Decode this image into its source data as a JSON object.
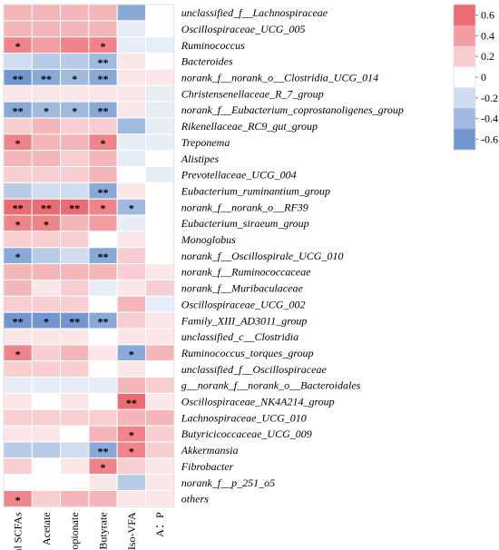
{
  "chart_data": {
    "type": "heatmap",
    "columns": [
      "Total SCFAs",
      "Acetate",
      "Propionate",
      "Butyrate",
      "Iso-VFA",
      "A：P"
    ],
    "rows": [
      "unclassified_f__Lachnospiraceae",
      "Oscillospiraceae_UCG_005",
      "Ruminococcus",
      "Bacteroides",
      "norank_f__norank_o__Clostridia_UCG_014",
      "Christensenellaceae_R_7_group",
      "norank_f__Eubacterium_coprostanoligenes_group",
      "Rikenellaceae_RC9_gut_group",
      "Treponema",
      "Alistipes",
      "Prevotellaceae_UCG_004",
      "Eubacterium_ruminantium_group",
      "norank_f__norank_o__RF39",
      "Eubacterium_siraeum_group",
      "Monoglobus",
      "norank_f__Oscillospirale_UCG_010",
      "norank_f__Ruminococcaceae",
      "norank_f__Muribaculaceae",
      "Oscillospiraceae_UCG_002",
      "Family_XIII_AD3011_group",
      "unclassified_c__Clostridia",
      "Ruminococcus_torques_group",
      "unclassified_f__Oscillospiraceae",
      "g__norank_f__norank_o__Bacteroidales",
      "Oscillospiraceae_NK4A214_group",
      "Lachnospiraceae_UCG_010",
      "Butyricicoccaceae_UCG_009",
      "Akkermansia",
      "Fibrobacter",
      "norank_f__p_251_o5",
      "others"
    ],
    "values": [
      [
        0.3,
        0.3,
        0.3,
        0.3,
        -0.5,
        0.0
      ],
      [
        0.3,
        0.3,
        0.3,
        0.3,
        -0.1,
        0.0
      ],
      [
        0.5,
        0.4,
        0.5,
        0.5,
        -0.1,
        -0.1
      ],
      [
        -0.2,
        -0.3,
        -0.3,
        -0.4,
        0.1,
        0.0
      ],
      [
        -0.6,
        -0.5,
        -0.4,
        -0.5,
        0.1,
        0.1
      ],
      [
        0.1,
        0.1,
        0.1,
        0.1,
        0.1,
        -0.1
      ],
      [
        -0.5,
        -0.4,
        -0.4,
        -0.5,
        0.1,
        -0.1
      ],
      [
        0.2,
        0.3,
        0.2,
        0.2,
        -0.4,
        -0.1
      ],
      [
        0.5,
        0.3,
        0.3,
        0.5,
        -0.1,
        -0.1
      ],
      [
        0.3,
        0.3,
        0.2,
        0.3,
        -0.1,
        0.0
      ],
      [
        0.2,
        0.2,
        0.2,
        0.3,
        0.0,
        -0.1
      ],
      [
        -0.3,
        -0.2,
        -0.2,
        -0.5,
        0.1,
        0.0
      ],
      [
        0.6,
        0.6,
        0.6,
        0.5,
        -0.4,
        0.0
      ],
      [
        0.5,
        0.5,
        0.3,
        0.4,
        -0.1,
        0.0
      ],
      [
        0.2,
        0.2,
        0.2,
        0.0,
        0.1,
        0.0
      ],
      [
        -0.5,
        -0.3,
        -0.2,
        -0.5,
        0.2,
        0.0
      ],
      [
        0.3,
        0.3,
        0.3,
        0.3,
        0.2,
        0.1
      ],
      [
        0.3,
        0.1,
        0.2,
        -0.1,
        0.1,
        0.2
      ],
      [
        0.2,
        0.2,
        0.2,
        0.0,
        0.3,
        -0.1
      ],
      [
        -0.6,
        -0.6,
        -0.6,
        -0.5,
        0.2,
        0.1
      ],
      [
        0.1,
        0.1,
        0.1,
        0.0,
        0.1,
        0.1
      ],
      [
        0.5,
        0.2,
        0.3,
        0.1,
        -0.5,
        0.3
      ],
      [
        0.2,
        0.2,
        0.2,
        0.0,
        0.1,
        0.0
      ],
      [
        -0.1,
        -0.1,
        -0.1,
        -0.1,
        0.3,
        0.2
      ],
      [
        0.1,
        0.0,
        0.1,
        0.0,
        0.6,
        0.1
      ],
      [
        0.2,
        0.2,
        0.2,
        0.2,
        0.3,
        0.3
      ],
      [
        0.1,
        0.1,
        0.0,
        0.3,
        0.5,
        0.2
      ],
      [
        -0.3,
        -0.3,
        -0.2,
        -0.5,
        0.5,
        0.2
      ],
      [
        0.2,
        0.0,
        0.1,
        0.5,
        0.2,
        0.1
      ],
      [
        0.0,
        0.0,
        0.0,
        0.1,
        -0.3,
        0.1
      ],
      [
        0.5,
        0.2,
        0.3,
        0.3,
        0.1,
        0.1
      ]
    ],
    "significance": [
      [
        "",
        "",
        "",
        "",
        "",
        ""
      ],
      [
        "",
        "",
        "",
        "",
        "",
        ""
      ],
      [
        "*",
        "",
        "",
        "*",
        "",
        ""
      ],
      [
        "",
        "",
        "",
        "**",
        "",
        ""
      ],
      [
        "**",
        "**",
        "*",
        "**",
        "",
        ""
      ],
      [
        "",
        "",
        "",
        "",
        "",
        ""
      ],
      [
        "**",
        "*",
        "*",
        "**",
        "",
        ""
      ],
      [
        "",
        "",
        "",
        "",
        "",
        ""
      ],
      [
        "*",
        "",
        "",
        "*",
        "",
        ""
      ],
      [
        "",
        "",
        "",
        "",
        "",
        ""
      ],
      [
        "",
        "",
        "",
        "",
        "",
        ""
      ],
      [
        "",
        "",
        "",
        "**",
        "",
        ""
      ],
      [
        "**",
        "**",
        "**",
        "*",
        "*",
        ""
      ],
      [
        "*",
        "*",
        "",
        "",
        "",
        ""
      ],
      [
        "",
        "",
        "",
        "",
        "",
        ""
      ],
      [
        "*",
        "",
        "",
        "**",
        "",
        ""
      ],
      [
        "",
        "",
        "",
        "",
        "",
        ""
      ],
      [
        "",
        "",
        "",
        "",
        "",
        ""
      ],
      [
        "",
        "",
        "",
        "",
        "",
        ""
      ],
      [
        "**",
        "*",
        "**",
        "**",
        "",
        ""
      ],
      [
        "",
        "",
        "",
        "",
        "",
        ""
      ],
      [
        "*",
        "",
        "",
        "",
        "*",
        ""
      ],
      [
        "",
        "",
        "",
        "",
        "",
        ""
      ],
      [
        "",
        "",
        "",
        "",
        "",
        ""
      ],
      [
        "",
        "",
        "",
        "",
        "**",
        ""
      ],
      [
        "",
        "",
        "",
        "",
        "",
        ""
      ],
      [
        "",
        "",
        "",
        "",
        "*",
        ""
      ],
      [
        "",
        "",
        "",
        "**",
        "*",
        ""
      ],
      [
        "",
        "",
        "",
        "*",
        "",
        ""
      ],
      [
        "",
        "",
        "",
        "",
        "",
        ""
      ],
      [
        "*",
        "",
        "",
        "",
        "",
        ""
      ]
    ],
    "colorbar": {
      "ticks": [
        "0.6",
        "0.4",
        "0.2",
        "0",
        "-0.2",
        "-0.4",
        "-0.6"
      ],
      "tick_values": [
        0.6,
        0.4,
        0.2,
        0,
        -0.2,
        -0.4,
        -0.6
      ],
      "range": [
        -0.7,
        0.7
      ],
      "positive_color": "#e8545c",
      "negative_color": "#5a86c8",
      "zero_color": "#ffffff",
      "placement": "right"
    }
  }
}
